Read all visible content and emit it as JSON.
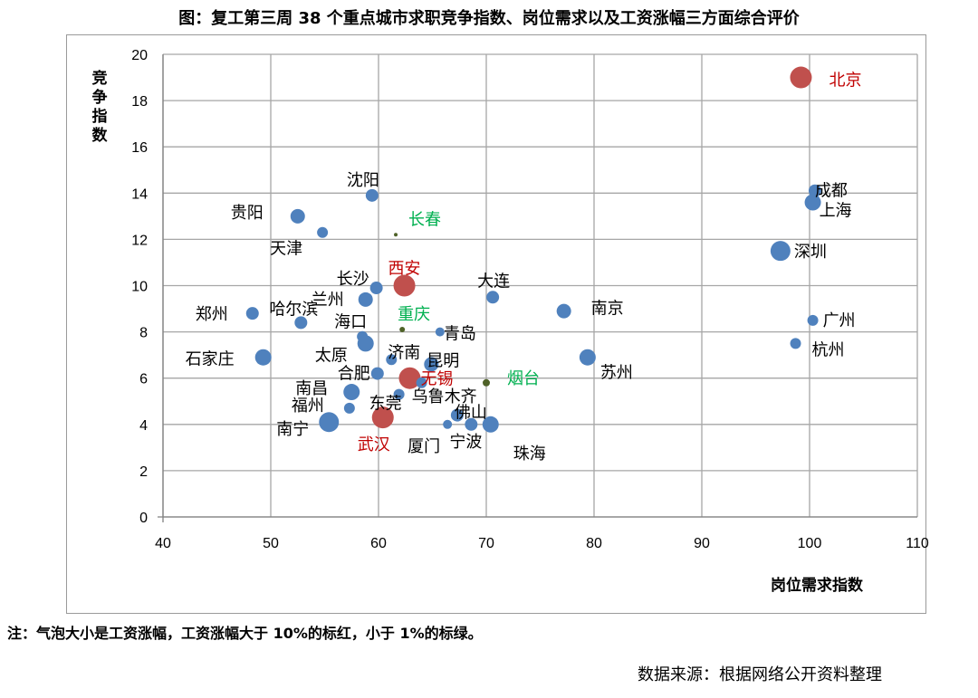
{
  "chart_data": {
    "type": "scatter",
    "subtype": "bubble",
    "title": "图：复工第三周 38 个重点城市求职竞争指数、岗位需求以及工资涨幅三方面综合评价",
    "xlabel": "岗位需求指数",
    "ylabel": "竞争指数",
    "xlim": [
      40,
      110
    ],
    "ylim": [
      0,
      20
    ],
    "xticks": [
      40,
      50,
      60,
      70,
      80,
      90,
      100,
      110
    ],
    "yticks": [
      0,
      2,
      4,
      6,
      8,
      10,
      12,
      14,
      16,
      18,
      20
    ],
    "grid": true,
    "legend": "none",
    "colors": {
      "high": "#c0504d",
      "normal": "#4f81bd",
      "low": "#4f6228",
      "high_label": "#c00000",
      "low_label": "#00b050",
      "normal_label": "#000000"
    },
    "points": [
      {
        "city": "北京",
        "x": 99.2,
        "y": 19.0,
        "size": 12,
        "group": "high"
      },
      {
        "city": "成都",
        "x": 100.5,
        "y": 14.1,
        "size": 7,
        "group": "normal"
      },
      {
        "city": "上海",
        "x": 100.3,
        "y": 13.6,
        "size": 9,
        "group": "normal"
      },
      {
        "city": "深圳",
        "x": 97.3,
        "y": 11.5,
        "size": 11,
        "group": "normal"
      },
      {
        "city": "广州",
        "x": 100.3,
        "y": 8.5,
        "size": 6,
        "group": "normal"
      },
      {
        "city": "杭州",
        "x": 98.7,
        "y": 7.5,
        "size": 6,
        "group": "normal"
      },
      {
        "city": "南京",
        "x": 77.2,
        "y": 8.9,
        "size": 8,
        "group": "normal"
      },
      {
        "city": "苏州",
        "x": 79.4,
        "y": 6.9,
        "size": 9,
        "group": "normal"
      },
      {
        "city": "大连",
        "x": 70.6,
        "y": 9.5,
        "size": 7,
        "group": "normal"
      },
      {
        "city": "沈阳",
        "x": 59.4,
        "y": 13.9,
        "size": 7,
        "group": "normal"
      },
      {
        "city": "贵阳",
        "x": 52.5,
        "y": 13.0,
        "size": 8,
        "group": "normal"
      },
      {
        "city": "天津",
        "x": 54.8,
        "y": 12.3,
        "size": 6,
        "group": "normal"
      },
      {
        "city": "长春",
        "x": 61.6,
        "y": 12.2,
        "size": 2,
        "group": "low"
      },
      {
        "city": "西安",
        "x": 62.4,
        "y": 10.0,
        "size": 12,
        "group": "high"
      },
      {
        "city": "长沙",
        "x": 59.8,
        "y": 9.9,
        "size": 7,
        "group": "normal"
      },
      {
        "city": "兰州",
        "x": 58.8,
        "y": 9.4,
        "size": 8,
        "group": "normal"
      },
      {
        "city": "郑州",
        "x": 48.3,
        "y": 8.8,
        "size": 7,
        "group": "normal"
      },
      {
        "city": "哈尔滨",
        "x": 52.8,
        "y": 8.4,
        "size": 7,
        "group": "normal"
      },
      {
        "city": "重庆",
        "x": 62.2,
        "y": 8.1,
        "size": 3,
        "group": "low"
      },
      {
        "city": "青岛",
        "x": 65.7,
        "y": 8.0,
        "size": 5,
        "group": "normal"
      },
      {
        "city": "海口",
        "x": 58.5,
        "y": 7.8,
        "size": 6,
        "group": "normal"
      },
      {
        "city": "太原",
        "x": 58.8,
        "y": 7.5,
        "size": 9,
        "group": "normal"
      },
      {
        "city": "石家庄",
        "x": 49.3,
        "y": 6.9,
        "size": 9,
        "group": "normal"
      },
      {
        "city": "济南",
        "x": 61.2,
        "y": 6.8,
        "size": 6,
        "group": "normal"
      },
      {
        "city": "昆明",
        "x": 64.9,
        "y": 6.6,
        "size": 8,
        "group": "normal"
      },
      {
        "city": "合肥",
        "x": 59.9,
        "y": 6.2,
        "size": 7,
        "group": "normal"
      },
      {
        "city": "无锡",
        "x": 62.9,
        "y": 6.0,
        "size": 12,
        "group": "high"
      },
      {
        "city": "乌鲁木齐",
        "x": 64.0,
        "y": 5.8,
        "size": 6,
        "group": "normal"
      },
      {
        "city": "烟台",
        "x": 70.0,
        "y": 5.8,
        "size": 4,
        "group": "low"
      },
      {
        "city": "南昌",
        "x": 57.5,
        "y": 5.4,
        "size": 9,
        "group": "normal"
      },
      {
        "city": "东莞",
        "x": 61.9,
        "y": 5.3,
        "size": 6,
        "group": "normal"
      },
      {
        "city": "福州",
        "x": 57.3,
        "y": 4.7,
        "size": 6,
        "group": "normal"
      },
      {
        "city": "佛山",
        "x": 67.3,
        "y": 4.4,
        "size": 7,
        "group": "normal"
      },
      {
        "city": "南宁",
        "x": 55.4,
        "y": 4.1,
        "size": 11,
        "group": "normal"
      },
      {
        "city": "武汉",
        "x": 60.4,
        "y": 4.3,
        "size": 12,
        "group": "high"
      },
      {
        "city": "厦门",
        "x": 66.4,
        "y": 4.0,
        "size": 5,
        "group": "normal"
      },
      {
        "city": "宁波",
        "x": 68.6,
        "y": 4.0,
        "size": 7,
        "group": "normal"
      },
      {
        "city": "珠海",
        "x": 70.4,
        "y": 4.0,
        "size": 9,
        "group": "normal"
      }
    ]
  },
  "note": "注：气泡大小是工资涨幅，工资涨幅大于 10%的标红，小于 1%的标绿。",
  "source": "数据来源：根据网络公开资料整理"
}
